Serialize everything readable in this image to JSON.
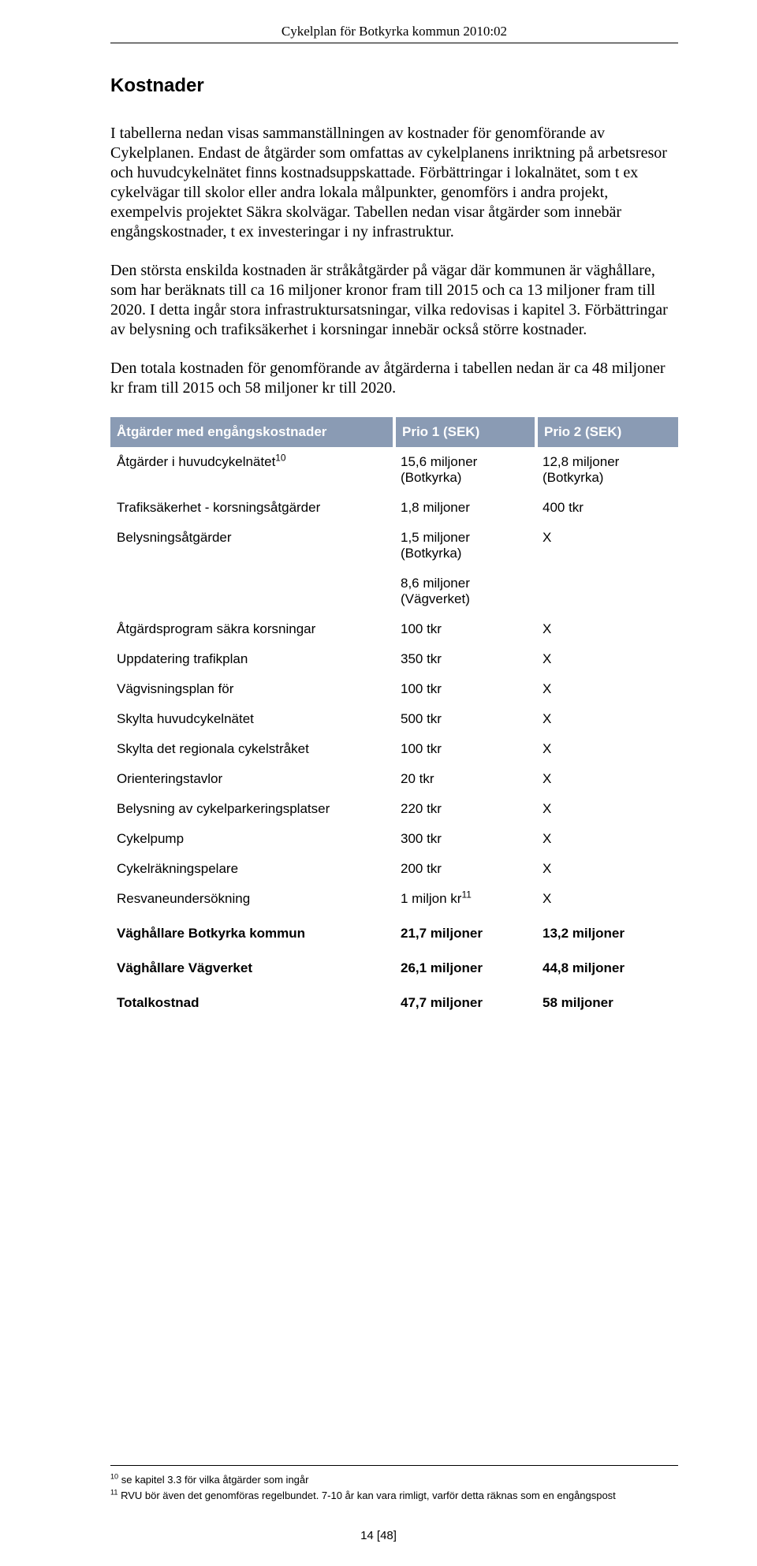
{
  "running_head": "Cykelplan för Botkyrka kommun 2010:02",
  "heading": "Kostnader",
  "paragraphs": [
    "I tabellerna nedan visas sammanställningen av kostnader för genomförande av Cykelplanen. Endast de åtgärder som omfattas av cykelplanens inriktning på arbetsresor och huvudcykelnätet finns kostnadsuppskattade. Förbättringar i lokalnätet, som t ex cykelvägar till skolor eller andra lokala målpunkter, genomförs i andra projekt, exempelvis projektet Säkra skolvägar. Tabellen nedan visar åtgärder som innebär engångskostnader, t ex investeringar i ny infrastruktur.",
    "Den största enskilda kostnaden är stråkåtgärder på vägar där kommunen är väghållare, som har beräknats till ca 16 miljoner kronor fram till 2015 och ca 13 miljoner fram till 2020. I detta ingår stora infrastruktursatsningar, vilka redovisas i kapitel 3. Förbättringar av belysning och trafiksäkerhet i korsningar innebär också större kostnader.",
    "Den totala kostnaden för genomförande av åtgärderna i tabellen nedan är ca 48 miljoner kr fram till 2015 och 58 miljoner kr till 2020."
  ],
  "table": {
    "type": "table",
    "header_bg": "#8a9bb4",
    "header_fg": "#ffffff",
    "font_family": "Arial",
    "body_fontsize": 17,
    "columns": [
      "Åtgärder med engångskostnader",
      "Prio 1 (SEK)",
      "Prio 2 (SEK)"
    ],
    "col_widths_pct": [
      50,
      25,
      25
    ],
    "rows": [
      {
        "c1": "Åtgärder i huvudcykelnätet",
        "sup1": "10",
        "c2": "15,6 miljoner (Botkyrka)",
        "c3": "12,8 miljoner (Botkyrka)"
      },
      {
        "c1": "Trafiksäkerhet - korsningsåtgärder",
        "c2": "1,8 miljoner",
        "c3": "400 tkr"
      },
      {
        "c1": "Belysningsåtgärder",
        "c2": "1,5 miljoner (Botkyrka)",
        "c3": "X"
      },
      {
        "c1": "",
        "c2": "8,6 miljoner (Vägverket)",
        "c3": ""
      },
      {
        "c1": "Åtgärdsprogram säkra korsningar",
        "c2": "100 tkr",
        "c3": "X"
      },
      {
        "c1": "Uppdatering trafikplan",
        "c2": "350 tkr",
        "c3": "X"
      },
      {
        "c1": "Vägvisningsplan för",
        "c2": "100 tkr",
        "c3": "X"
      },
      {
        "c1": "Skylta huvudcykelnätet",
        "c2": "500 tkr",
        "c3": "X"
      },
      {
        "c1": "Skylta det regionala cykelstråket",
        "c2": "100 tkr",
        "c3": "X"
      },
      {
        "c1": "Orienteringstavlor",
        "c2": "20 tkr",
        "c3": "X"
      },
      {
        "c1": "Belysning av cykelparkeringsplatser",
        "c2": "220 tkr",
        "c3": "X"
      },
      {
        "c1": "Cykelpump",
        "c2": "300 tkr",
        "c3": "X"
      },
      {
        "c1": "Cykelräkningspelare",
        "c2": "200 tkr",
        "c3": "X"
      },
      {
        "c1": "Resvaneundersökning",
        "c2": "1 miljon kr",
        "sup2": "11",
        "c3": "X"
      },
      {
        "c1": "Väghållare Botkyrka kommun",
        "c2": "21,7 miljoner",
        "c3": "13,2 miljoner",
        "bold": true,
        "spacer_before": true
      },
      {
        "c1": "Väghållare  Vägverket",
        "c2": "26,1 miljoner",
        "c3": "44,8 miljoner",
        "bold": true,
        "spacer_before": true
      },
      {
        "c1": "Totalkostnad",
        "c2": "47,7 miljoner",
        "c3": "58 miljoner",
        "bold": true,
        "spacer_before": true
      }
    ]
  },
  "footnotes": [
    {
      "num": "10",
      "text": " se kapitel 3.3 för vilka åtgärder som ingår"
    },
    {
      "num": "11",
      "text": " RVU bör även det genomföras regelbundet. 7-10 år kan vara rimligt, varför detta räknas som en engångspost"
    }
  ],
  "page_number": "14 [48]"
}
